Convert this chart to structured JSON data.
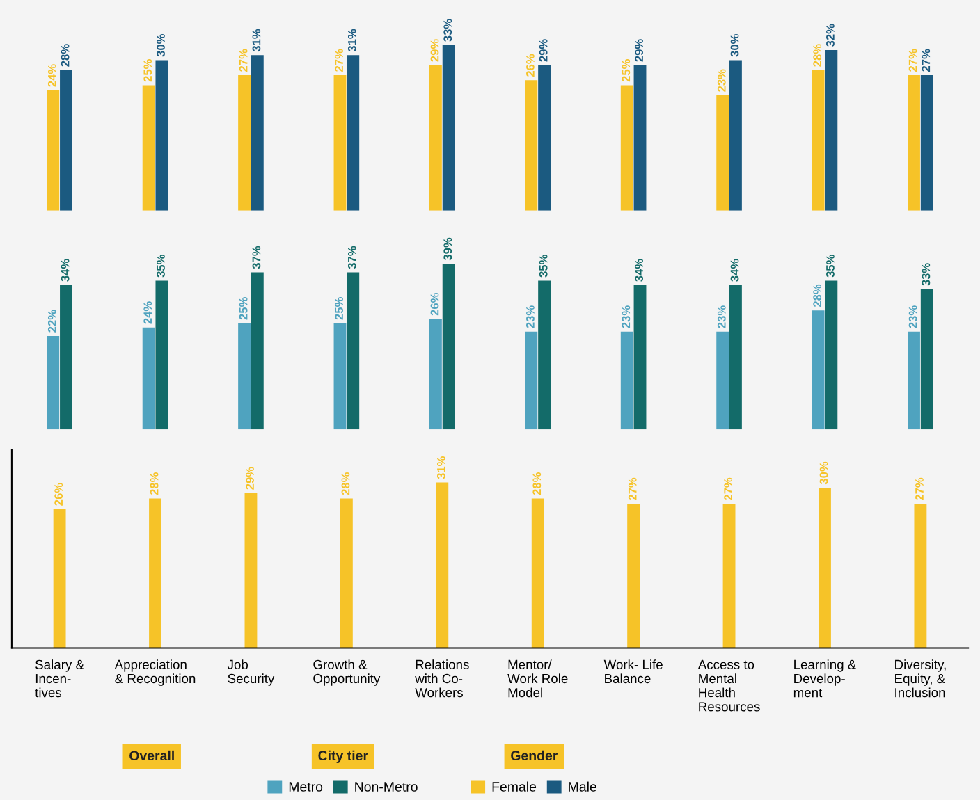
{
  "chart_data": [
    {
      "type": "bar",
      "title": "Gender",
      "categories": [
        null,
        null,
        null,
        null,
        null,
        null,
        null,
        null,
        null,
        null
      ],
      "series": [
        {
          "name": "Female",
          "color": "#f6c328",
          "values": [
            24,
            25,
            27,
            27,
            29,
            26,
            25,
            23,
            28,
            27
          ],
          "value_labels": [
            "24%",
            "25%",
            "27%",
            "27%",
            "29%",
            "26%",
            "25%",
            "23%",
            "28%",
            "27%"
          ]
        },
        {
          "name": "Male",
          "color": "#1b5a80",
          "values": [
            28,
            30,
            31,
            31,
            33,
            29,
            29,
            30,
            32,
            27
          ],
          "value_labels": [
            "28%",
            "30%",
            "31%",
            "31%",
            "33%",
            "29%",
            "29%",
            "30%",
            "32%",
            "27%"
          ]
        }
      ],
      "legend": "bottom",
      "tick_labels": false
    },
    {
      "type": "bar",
      "title": "City tier",
      "categories": [
        null,
        null,
        null,
        null,
        null,
        null,
        null,
        null,
        null,
        null
      ],
      "series": [
        {
          "name": "Metro",
          "color": "#4fa3bf",
          "values": [
            22,
            24,
            25,
            25,
            26,
            23,
            23,
            23,
            28,
            23
          ],
          "value_labels": [
            "22%",
            "24%",
            "25%",
            "25%",
            "26%",
            "23%",
            "23%",
            "23%",
            "28%",
            "23%"
          ]
        },
        {
          "name": "Non-Metro",
          "color": "#136b69",
          "values": [
            34,
            35,
            37,
            37,
            39,
            35,
            34,
            34,
            35,
            33
          ],
          "value_labels": [
            "34%",
            "35%",
            "37%",
            "37%",
            "39%",
            "35%",
            "34%",
            "34%",
            "35%",
            "33%"
          ]
        }
      ],
      "legend": "bottom",
      "tick_labels": false
    },
    {
      "type": "bar",
      "title": "Overall",
      "categories": [
        "Salary &\nIncen-\ntives",
        "Appreciation\n& Recognition",
        "Job\nSecurity",
        "Growth &\nOpportunity",
        "Relations\nwith Co-\nWorkers",
        "Mentor/\nWork Role\nModel",
        "Work- Life\nBalance",
        "Access to\nMental\nHealth\nResources",
        "Learning &\nDevelop-\nment",
        "Diversity,\nEquity, &\nInclusion"
      ],
      "color": "#f6c328",
      "values": [
        26,
        28,
        29,
        28,
        31,
        28,
        27,
        27,
        30,
        27
      ],
      "value_labels": [
        "26%",
        "28%",
        "29%",
        "28%",
        "31%",
        "28%",
        "27%",
        "27%",
        "30%",
        "27%"
      ],
      "tick_labels": "x"
    }
  ]
}
